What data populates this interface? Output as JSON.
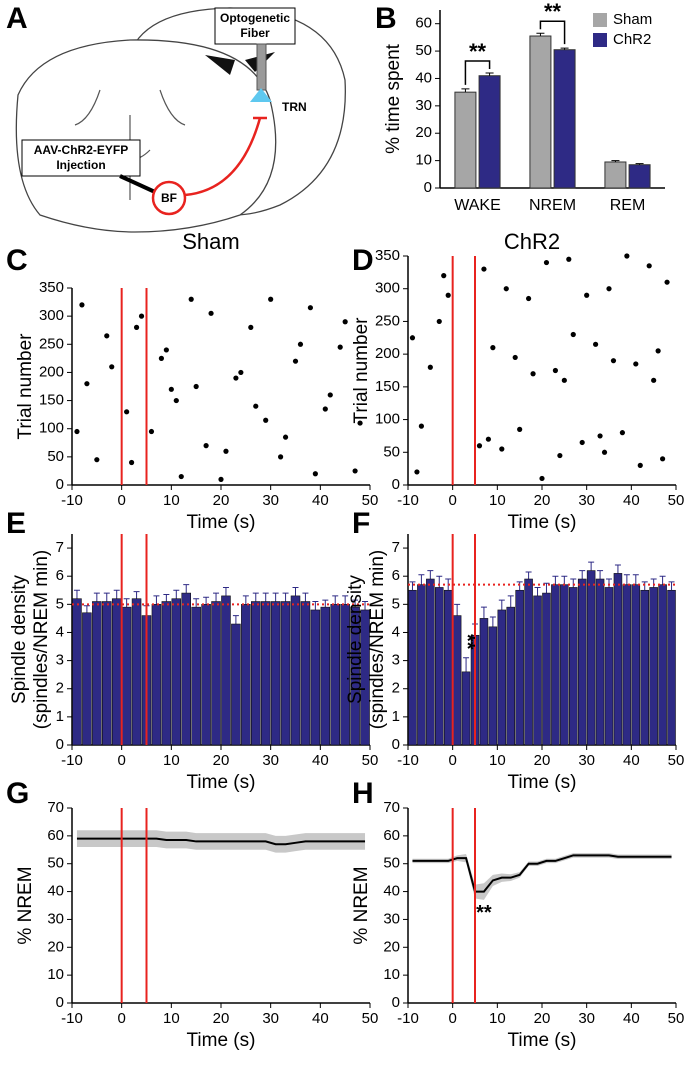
{
  "diagram": {
    "panel": "A",
    "fiber_label": [
      "Optogenetic",
      "Fiber"
    ],
    "trn_label": "TRN",
    "injection_label": [
      "AAV-ChR2-EYFP",
      "Injection"
    ],
    "bf_label": "BF"
  },
  "chart_data": [
    {
      "type": "grouped-bar",
      "panel": "B",
      "ylabel": "% time spent",
      "categories": [
        "WAKE",
        "NREM",
        "REM"
      ],
      "series": [
        {
          "name": "Sham",
          "color": "#a6a6a6",
          "values": [
            35,
            55.5,
            9.5
          ],
          "errors": [
            1.2,
            1,
            0.5
          ]
        },
        {
          "name": "ChR2",
          "color": "#2e2a85",
          "values": [
            41,
            50.5,
            8.5
          ],
          "errors": [
            1,
            0.6,
            0.4
          ]
        }
      ],
      "ylim": [
        0,
        65
      ],
      "yticks": [
        0,
        10,
        20,
        30,
        40,
        50,
        60
      ],
      "legend": "top-right",
      "annotations": [
        {
          "text": "**",
          "category": 0
        },
        {
          "text": "**",
          "category": 1
        }
      ]
    },
    {
      "type": "scatter",
      "panel": "C",
      "title": "Sham",
      "xlabel": "Time (s)",
      "ylabel": "Trial number",
      "x": [
        -8,
        -5,
        -2,
        1,
        3,
        6,
        9,
        12,
        15,
        18,
        21,
        24,
        27,
        30,
        33,
        36,
        39,
        42,
        45,
        48,
        -7,
        -3,
        2,
        4,
        8,
        11,
        14,
        17,
        20,
        23,
        26,
        29,
        32,
        35,
        38,
        41,
        44,
        47,
        -9,
        10
      ],
      "y": [
        320,
        45,
        210,
        130,
        280,
        95,
        240,
        15,
        175,
        305,
        60,
        200,
        140,
        330,
        85,
        250,
        20,
        160,
        290,
        110,
        180,
        265,
        40,
        300,
        225,
        150,
        330,
        70,
        10,
        190,
        280,
        115,
        50,
        220,
        315,
        135,
        245,
        25,
        95,
        170
      ],
      "color": "#000000",
      "markers": [
        0,
        5
      ],
      "marker_color": "#e8231f",
      "xlim": [
        -10,
        50
      ],
      "xticks": [
        -10,
        0,
        10,
        20,
        30,
        40,
        50
      ],
      "ylim": [
        0,
        350
      ],
      "yticks": [
        0,
        50,
        100,
        150,
        200,
        250,
        300,
        350
      ]
    },
    {
      "type": "scatter",
      "panel": "D",
      "title": "ChR2",
      "xlabel": "Time (s)",
      "ylabel": "Trial number",
      "x": [
        -8,
        -5,
        -2,
        6,
        9,
        12,
        15,
        18,
        21,
        24,
        27,
        30,
        33,
        36,
        39,
        42,
        45,
        48,
        -7,
        -3,
        7,
        11,
        14,
        17,
        20,
        23,
        26,
        29,
        32,
        35,
        38,
        41,
        44,
        47,
        -9,
        -1,
        8,
        25,
        34,
        46
      ],
      "y": [
        20,
        180,
        320,
        60,
        210,
        300,
        85,
        170,
        340,
        45,
        230,
        290,
        75,
        190,
        350,
        30,
        160,
        310,
        90,
        250,
        330,
        55,
        195,
        285,
        10,
        175,
        345,
        65,
        215,
        300,
        80,
        185,
        335,
        40,
        225,
        290,
        70,
        160,
        50,
        205
      ],
      "color": "#000000",
      "markers": [
        0,
        5
      ],
      "marker_color": "#e8231f",
      "xlim": [
        -10,
        50
      ],
      "xticks": [
        -10,
        0,
        10,
        20,
        30,
        40,
        50
      ],
      "ylim": [
        0,
        350
      ],
      "yticks": [
        0,
        50,
        100,
        150,
        200,
        250,
        300,
        350
      ]
    },
    {
      "type": "bar",
      "panel": "E",
      "xlabel": "Time (s)",
      "ylabel": [
        "Spindle density",
        "(spindles/NREM min)"
      ],
      "x": [
        -9,
        -7,
        -5,
        -3,
        -1,
        1,
        3,
        5,
        7,
        9,
        11,
        13,
        15,
        17,
        19,
        21,
        23,
        25,
        27,
        29,
        31,
        33,
        35,
        37,
        39,
        41,
        43,
        45,
        47,
        49
      ],
      "values": [
        5.2,
        4.7,
        5.1,
        5.1,
        5.2,
        4.9,
        5.2,
        4.6,
        5.0,
        5.1,
        5.2,
        5.4,
        4.9,
        5.0,
        5.1,
        5.3,
        4.3,
        5.0,
        5.1,
        5.1,
        5.1,
        5.1,
        5.3,
        5.1,
        4.8,
        4.9,
        5.0,
        5.0,
        4.9,
        4.8
      ],
      "errors": [
        0.3,
        0.25,
        0.3,
        0.3,
        0.3,
        0.3,
        0.25,
        0.35,
        0.3,
        0.25,
        0.3,
        0.3,
        0.3,
        0.25,
        0.3,
        0.3,
        0.3,
        0.3,
        0.3,
        0.3,
        0.3,
        0.3,
        0.3,
        0.3,
        0.3,
        0.25,
        0.3,
        0.3,
        0.25,
        0.3
      ],
      "color": "#2e2a85",
      "reference": 5.0,
      "markers": [
        0,
        5
      ],
      "marker_color": "#e8231f",
      "xlim": [
        -10,
        50
      ],
      "xticks": [
        -10,
        0,
        10,
        20,
        30,
        40,
        50
      ],
      "ylim": [
        0,
        7.5
      ],
      "yticks": [
        0,
        1,
        2,
        3,
        4,
        5,
        6,
        7
      ]
    },
    {
      "type": "bar",
      "panel": "F",
      "xlabel": "Time (s)",
      "ylabel": [
        "Spindle density",
        "(spindles/NREM min)"
      ],
      "x": [
        -9,
        -7,
        -5,
        -3,
        -1,
        1,
        3,
        5,
        7,
        9,
        11,
        13,
        15,
        17,
        19,
        21,
        23,
        25,
        27,
        29,
        31,
        33,
        35,
        37,
        39,
        41,
        43,
        45,
        47,
        49
      ],
      "values": [
        5.5,
        5.7,
        5.9,
        5.6,
        5.5,
        4.6,
        2.6,
        3.9,
        4.5,
        4.2,
        4.8,
        4.9,
        5.5,
        5.9,
        5.3,
        5.4,
        5.7,
        5.7,
        5.6,
        5.9,
        6.2,
        5.9,
        5.6,
        6.1,
        5.7,
        5.7,
        5.5,
        5.6,
        5.7,
        5.5
      ],
      "errors": [
        0.3,
        0.35,
        0.3,
        0.4,
        0.4,
        0.4,
        0.5,
        0.4,
        0.4,
        0.35,
        0.35,
        0.4,
        0.3,
        0.25,
        0.3,
        0.35,
        0.3,
        0.3,
        0.3,
        0.3,
        0.3,
        0.3,
        0.3,
        0.3,
        0.35,
        0.35,
        0.3,
        0.3,
        0.3,
        0.3
      ],
      "color": "#2e2a85",
      "reference": 5.7,
      "markers": [
        0,
        5
      ],
      "marker_color": "#e8231f",
      "annotations": [
        {
          "text": "**",
          "x": 3
        }
      ],
      "xlim": [
        -10,
        50
      ],
      "xticks": [
        -10,
        0,
        10,
        20,
        30,
        40,
        50
      ],
      "ylim": [
        0,
        7.5
      ],
      "yticks": [
        0,
        1,
        2,
        3,
        4,
        5,
        6,
        7
      ]
    },
    {
      "type": "line",
      "panel": "G",
      "xlabel": "Time (s)",
      "ylabel": "% NREM",
      "x": [
        -9,
        -7,
        -5,
        -3,
        -1,
        1,
        3,
        5,
        7,
        9,
        11,
        13,
        15,
        17,
        19,
        21,
        23,
        25,
        27,
        29,
        31,
        33,
        35,
        37,
        39,
        41,
        43,
        45,
        47,
        49
      ],
      "values": [
        59,
        59,
        59,
        59,
        59,
        59,
        59,
        59,
        59,
        58.5,
        58.5,
        58.5,
        58,
        58,
        58,
        58,
        58,
        58,
        58,
        58,
        57,
        57,
        57.5,
        58,
        58,
        58,
        58,
        58,
        58,
        58
      ],
      "errors": [
        3,
        3,
        3,
        3,
        3,
        3,
        3,
        3,
        3,
        3,
        3,
        3,
        3,
        3,
        3,
        3,
        3,
        3,
        3,
        3,
        3,
        3,
        3,
        3,
        3,
        3,
        3,
        3,
        3,
        3
      ],
      "color": "#000000",
      "band_color": "#c8c8c8",
      "markers": [
        0,
        5
      ],
      "marker_color": "#e8231f",
      "xlim": [
        -10,
        50
      ],
      "xticks": [
        -10,
        0,
        10,
        20,
        30,
        40,
        50
      ],
      "ylim": [
        0,
        70
      ],
      "yticks": [
        0,
        10,
        20,
        30,
        40,
        50,
        60,
        70
      ]
    },
    {
      "type": "line",
      "panel": "H",
      "xlabel": "Time (s)",
      "ylabel": "% NREM",
      "x": [
        -9,
        -7,
        -5,
        -3,
        -1,
        1,
        3,
        5,
        7,
        9,
        11,
        13,
        15,
        17,
        19,
        21,
        23,
        25,
        27,
        29,
        31,
        33,
        35,
        37,
        39,
        41,
        43,
        45,
        47,
        49
      ],
      "values": [
        51,
        51,
        51,
        51,
        51,
        52,
        52,
        40,
        40,
        44,
        45,
        45,
        46,
        50,
        50,
        51,
        51,
        52,
        53,
        53,
        53,
        53,
        53,
        52.5,
        52.5,
        52.5,
        52.5,
        52.5,
        52.5,
        52.5
      ],
      "errors": [
        0.8,
        0.8,
        0.8,
        0.8,
        0.8,
        1,
        1.5,
        2.5,
        3,
        2,
        1.5,
        1.2,
        1,
        0.8,
        0.8,
        0.8,
        0.8,
        0.8,
        0.8,
        0.8,
        0.8,
        0.8,
        0.8,
        0.8,
        0.8,
        0.8,
        0.8,
        0.8,
        0.8,
        0.8
      ],
      "color": "#000000",
      "band_color": "#c8c8c8",
      "markers": [
        0,
        5
      ],
      "marker_color": "#e8231f",
      "annotations": [
        {
          "text": "**",
          "x": 7
        }
      ],
      "xlim": [
        -10,
        50
      ],
      "xticks": [
        -10,
        0,
        10,
        20,
        30,
        40,
        50
      ],
      "ylim": [
        0,
        70
      ],
      "yticks": [
        0,
        10,
        20,
        30,
        40,
        50,
        60,
        70
      ]
    }
  ]
}
